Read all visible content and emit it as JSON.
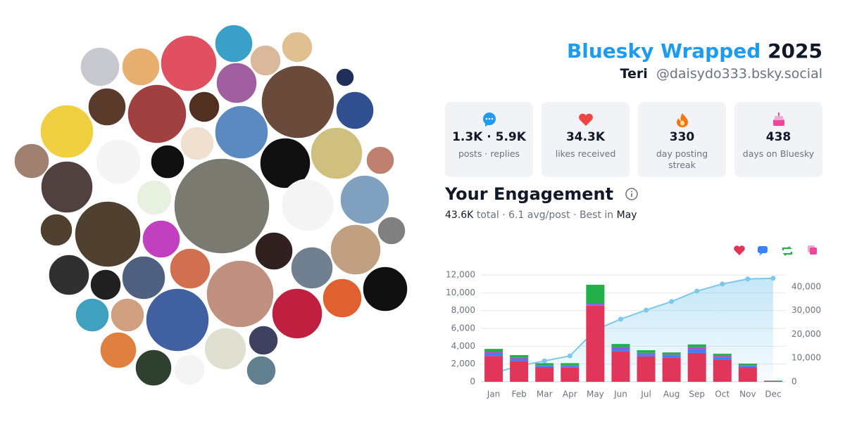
{
  "header": {
    "title": "Bluesky Wrapped",
    "year": "2025",
    "name": "Teri",
    "handle": "@daisydo333.bsky.social"
  },
  "stats": [
    {
      "value": "1.3K · 5.9K",
      "label": "posts · replies"
    },
    {
      "value": "34.3K",
      "label": "likes received"
    },
    {
      "value": "330",
      "label": "day posting streak"
    },
    {
      "value": "438",
      "label": "days on Bluesky"
    }
  ],
  "engagement": {
    "title": "Your Engagement",
    "total": "43.6K",
    "summary": "total · 6.1 avg/post · Best in",
    "best_month": "May"
  },
  "chart_data": {
    "type": "bar",
    "categories": [
      "Jan",
      "Feb",
      "Mar",
      "Apr",
      "May",
      "Jun",
      "Jul",
      "Aug",
      "Sep",
      "Oct",
      "Nov",
      "Dec"
    ],
    "stacked": true,
    "series": [
      {
        "color": "#e0365a",
        "values": [
          2900,
          2350,
          1650,
          1600,
          8550,
          3450,
          2850,
          2700,
          3250,
          2450,
          1650,
          100
        ]
      },
      {
        "color": "#3b82f6",
        "values": [
          300,
          250,
          150,
          150,
          120,
          300,
          250,
          250,
          350,
          300,
          150,
          20
        ]
      },
      {
        "color": "#c040d0",
        "values": [
          150,
          100,
          80,
          80,
          130,
          150,
          150,
          100,
          200,
          150,
          80,
          10
        ]
      },
      {
        "color": "#22b04a",
        "values": [
          350,
          300,
          220,
          270,
          2100,
          350,
          300,
          250,
          400,
          250,
          170,
          20
        ]
      },
      {
        "color": "#7cc8ec",
        "type": "area",
        "axis": "y2",
        "values": [
          3700,
          6700,
          8800,
          10900,
          21800,
          26400,
          30200,
          33800,
          38200,
          41200,
          43300,
          43600
        ]
      }
    ],
    "ylim": [
      0,
      12000
    ],
    "yticks": [
      0,
      {
        "value": 2000,
        "label": "2,000"
      },
      {
        "value": 4000,
        "label": "4,000"
      },
      {
        "value": 6000,
        "label": "6,000"
      },
      {
        "value": 8000,
        "label": "8,000"
      },
      {
        "value": 10000,
        "label": "10,000"
      },
      {
        "value": 12000,
        "label": "12,000"
      }
    ],
    "y2lim": [
      0,
      45000
    ],
    "y2ticks": [
      0,
      {
        "value": 10000,
        "label": "10,000"
      },
      {
        "value": 20000,
        "label": "20,000"
      },
      {
        "value": 30000,
        "label": "30,000"
      },
      {
        "value": 40000,
        "label": "40,000"
      }
    ],
    "grid": true
  }
}
